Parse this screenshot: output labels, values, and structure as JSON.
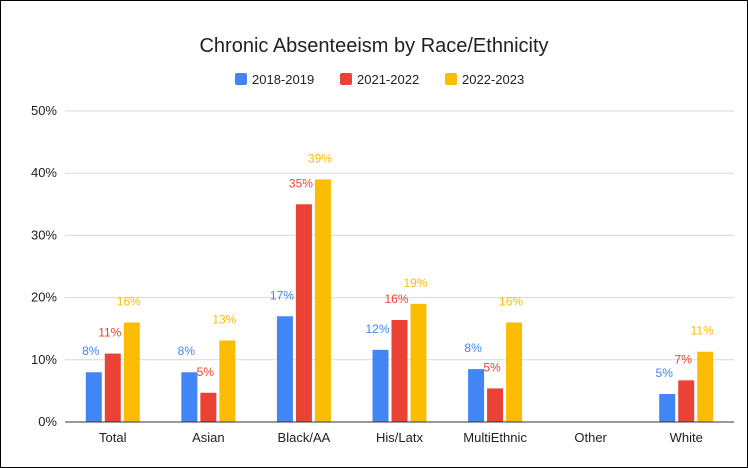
{
  "chart_data": {
    "type": "bar",
    "title": "Chronic Absenteeism by Race/Ethnicity",
    "xlabel": "",
    "ylabel": "",
    "categories": [
      "Total",
      "Asian",
      "Black/AA",
      "His/Latx",
      "MultiEthnic",
      "Other",
      "White"
    ],
    "series": [
      {
        "name": "2018-2019",
        "color": "#4285f4",
        "values": [
          8,
          8,
          17,
          11.6,
          8.5,
          null,
          4.5
        ],
        "labels": [
          "8%",
          "8%",
          "17%",
          "12%",
          "8%",
          "",
          "5%"
        ]
      },
      {
        "name": "2021-2022",
        "color": "#ea4335",
        "values": [
          11,
          4.7,
          35,
          16.4,
          5.4,
          null,
          6.7
        ],
        "labels": [
          "11%",
          "5%",
          "35%",
          "16%",
          "5%",
          "",
          "7%"
        ]
      },
      {
        "name": "2022-2023",
        "color": "#fbbc04",
        "values": [
          16,
          13.1,
          39,
          19,
          16,
          null,
          11.3
        ],
        "labels": [
          "16%",
          "13%",
          "39%",
          "19%",
          "16%",
          "",
          "11%"
        ]
      }
    ],
    "ylim": [
      0,
      50
    ],
    "yticks": [
      "0%",
      "10%",
      "20%",
      "30%",
      "40%",
      "50%"
    ],
    "grid": true,
    "legend_position": "top"
  }
}
